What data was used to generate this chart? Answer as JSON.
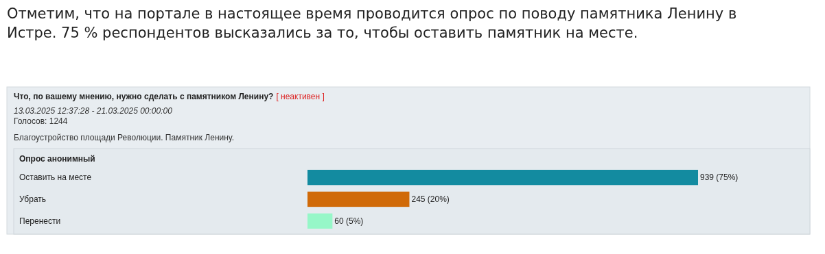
{
  "chart_data": {
    "type": "bar",
    "orientation": "horizontal",
    "title": "Что, по вашему мнению, нужно сделать с памятником Ленину?",
    "subtitle": "13.03.2025 12:37:28 - 21.03.2025 00:00:00",
    "annotations": [
      "Отметим, что на портале в настоящее время проводится опрос по поводу памятника Ленину в Истре. 75 % респондентов высказались за то, чтобы оставить памятник на месте.",
      "[ неактивен ]",
      "Голосов: 1244",
      "Благоустройство площади Революции. Памятник Ленину.",
      "Опрос анонимный"
    ],
    "categories": [
      "Оставить на месте",
      "Убрать",
      "Перенести"
    ],
    "values": [
      939,
      245,
      60
    ],
    "colors": [
      "#138ba0",
      "#d06a08",
      "#96f7c8"
    ],
    "value_labels": [
      "939 (75%)",
      "245 (20%)",
      "60 (5%)"
    ]
  }
}
